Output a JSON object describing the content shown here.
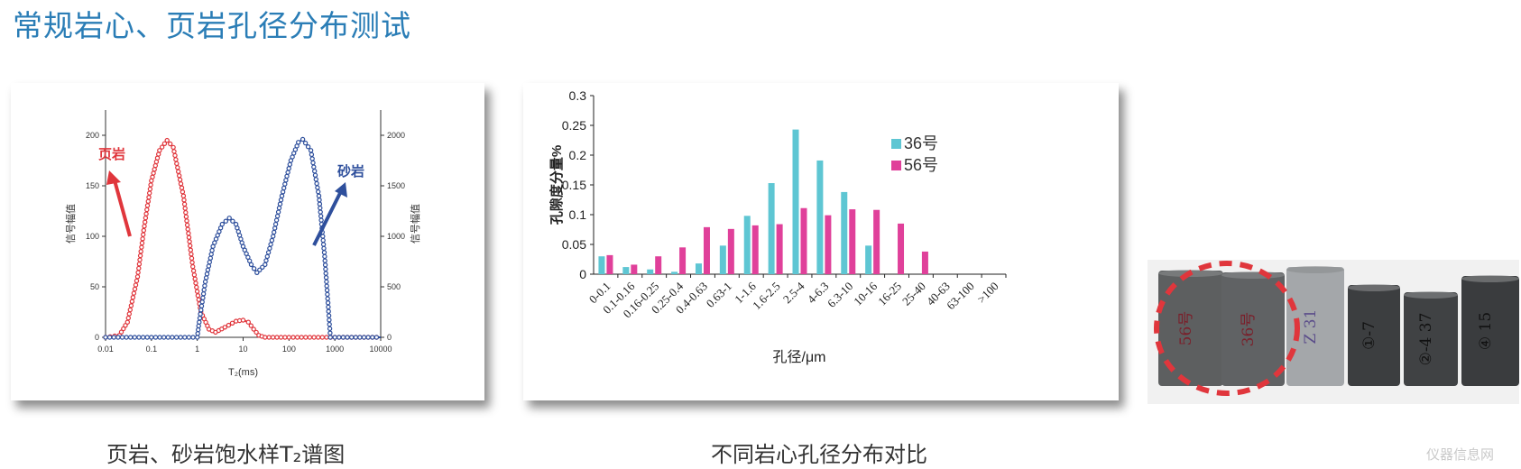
{
  "page": {
    "title": "常规岩心、页岩孔径分布测试",
    "caption_left": "页岩、砂岩饱水样T₂谱图",
    "caption_right": "不同岩心孔径分布对比",
    "watermark": "仪器信息网"
  },
  "colors": {
    "title": "#2a7db6",
    "shale": "#e0363c",
    "sandstone": "#2e4f9c",
    "s36": "#5ec6d3",
    "s56": "#e0409a"
  },
  "photo": {
    "labels": [
      "56号",
      "36号",
      "Z 31",
      "①-7",
      "②-4 37",
      "④ 15"
    ]
  },
  "chart_data": [
    {
      "type": "line",
      "x_scale": "log",
      "xlabel": "T₂(ms)",
      "ylabel": "信号幅值",
      "y2label": "信号幅值",
      "xticks": [
        "0.01",
        "0.1",
        "1",
        "10",
        "100",
        "1000",
        "10000"
      ],
      "yticks": [
        "0",
        "50",
        "100",
        "150",
        "200"
      ],
      "y2ticks": [
        "0",
        "500",
        "1000",
        "1500",
        "2000"
      ],
      "xlim": [
        0.01,
        10000
      ],
      "ylim": [
        0,
        225
      ],
      "y2lim": [
        0,
        2250
      ],
      "annotations": [
        "页岩",
        "砂岩"
      ],
      "series": [
        {
          "name": "页岩",
          "axis": "left",
          "color": "#e0363c",
          "points": [
            [
              0.01,
              0
            ],
            [
              0.02,
              2
            ],
            [
              0.03,
              15
            ],
            [
              0.05,
              60
            ],
            [
              0.07,
              110
            ],
            [
              0.1,
              155
            ],
            [
              0.15,
              185
            ],
            [
              0.22,
              195
            ],
            [
              0.3,
              188
            ],
            [
              0.5,
              140
            ],
            [
              0.8,
              70
            ],
            [
              1.2,
              25
            ],
            [
              1.8,
              8
            ],
            [
              2.5,
              5
            ],
            [
              4,
              10
            ],
            [
              7,
              16
            ],
            [
              10,
              17
            ],
            [
              13,
              15
            ],
            [
              17,
              8
            ],
            [
              22,
              2
            ],
            [
              30,
              0
            ],
            [
              100,
              0
            ],
            [
              1000,
              0
            ],
            [
              10000,
              0
            ]
          ]
        },
        {
          "name": "砂岩",
          "axis": "right",
          "color": "#2e4f9c",
          "points": [
            [
              0.01,
              0
            ],
            [
              0.1,
              0
            ],
            [
              1,
              0
            ],
            [
              1.1,
              150
            ],
            [
              1.5,
              550
            ],
            [
              2.2,
              900
            ],
            [
              3.5,
              1120
            ],
            [
              5,
              1180
            ],
            [
              7,
              1120
            ],
            [
              10,
              900
            ],
            [
              15,
              720
            ],
            [
              20,
              640
            ],
            [
              30,
              720
            ],
            [
              45,
              1000
            ],
            [
              70,
              1400
            ],
            [
              110,
              1750
            ],
            [
              160,
              1930
            ],
            [
              200,
              1960
            ],
            [
              300,
              1850
            ],
            [
              450,
              1400
            ],
            [
              600,
              800
            ],
            [
              720,
              300
            ],
            [
              800,
              0
            ],
            [
              1000,
              0
            ],
            [
              10000,
              0
            ]
          ]
        }
      ]
    },
    {
      "type": "bar",
      "xlabel": "孔径/μm",
      "ylabel": "孔隙度分量%",
      "ylim": [
        0,
        0.3
      ],
      "yticks": [
        "0",
        "0.05",
        "0.1",
        "0.15",
        "0.2",
        "0.25",
        "0.3"
      ],
      "legend_position": "top-right",
      "categories": [
        "0-0.1",
        "0.1-0.16",
        "0.16-0.25",
        "0.25-0.4",
        "0.4-0.63",
        "0.63-1",
        "1-1.6",
        "1.6-2.5",
        "2.5-4",
        "4-6.3",
        "6.3-10",
        "10-16",
        "16-25",
        "25-40",
        "40-63",
        "63-100",
        ">100"
      ],
      "series": [
        {
          "name": "36号",
          "color": "#5ec6d3",
          "values": [
            0.03,
            0.012,
            0.008,
            0.004,
            0.018,
            0.048,
            0.098,
            0.153,
            0.243,
            0.191,
            0.138,
            0.048,
            0,
            0,
            0,
            0,
            0
          ]
        },
        {
          "name": "56号",
          "color": "#e0409a",
          "values": [
            0.032,
            0.016,
            0.03,
            0.045,
            0.079,
            0.076,
            0.082,
            0.084,
            0.111,
            0.099,
            0.109,
            0.108,
            0.085,
            0.038,
            0,
            0,
            0
          ]
        }
      ]
    }
  ]
}
